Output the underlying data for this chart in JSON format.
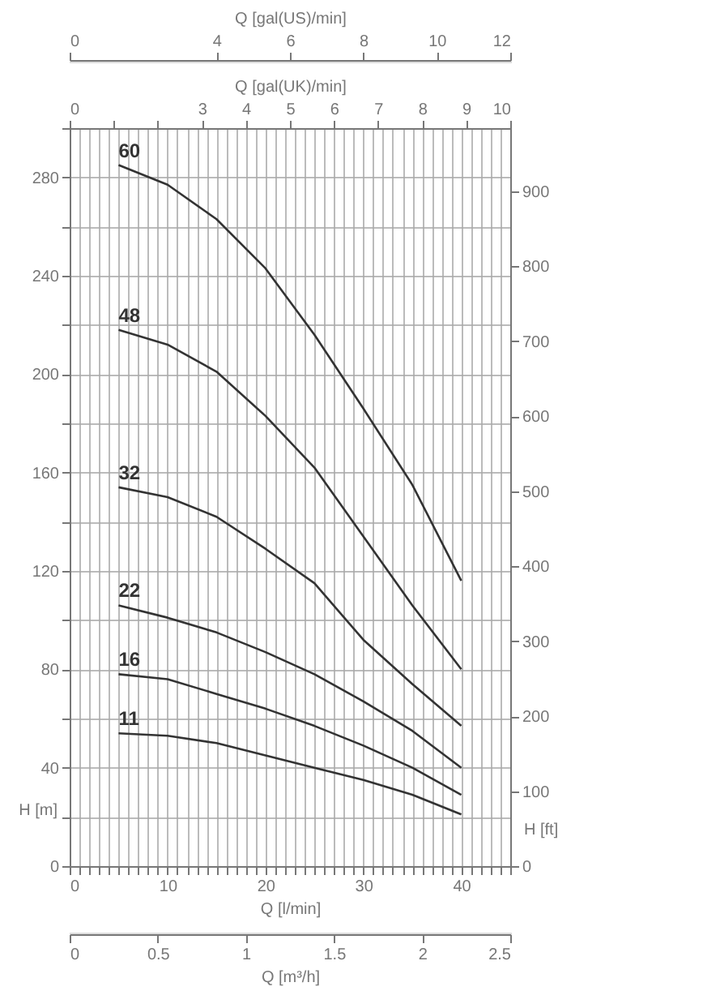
{
  "chart_data": [
    {
      "type": "other",
      "xlabel": "Q [gal(US)/min]",
      "annotations": [
        "0",
        "4",
        "6",
        "8",
        "10",
        "12"
      ]
    },
    {
      "type": "line",
      "xlabel": "Q [l/min]",
      "ylabel": "H [m]",
      "x2label": "Q [gal(UK)/min]",
      "y2label": "H [ft]",
      "x": [
        5,
        10,
        15,
        20,
        25,
        30,
        35,
        40
      ],
      "series": [
        {
          "name": "60",
          "color": "#333333",
          "values": [
            285,
            277,
            263,
            243,
            216,
            186,
            155,
            116
          ]
        },
        {
          "name": "48",
          "color": "#333333",
          "values": [
            218,
            212,
            201,
            183,
            162,
            134,
            106,
            80
          ]
        },
        {
          "name": "32",
          "color": "#333333",
          "values": [
            154,
            150,
            142,
            129,
            115,
            92,
            74,
            57
          ]
        },
        {
          "name": "22",
          "color": "#333333",
          "values": [
            106,
            101,
            95,
            87,
            78,
            67,
            55,
            40
          ]
        },
        {
          "name": "16",
          "color": "#333333",
          "values": [
            78,
            76,
            70,
            64,
            57,
            49,
            40,
            29
          ]
        },
        {
          "name": "11",
          "color": "#333333",
          "values": [
            54,
            53,
            50,
            45,
            40,
            35,
            29,
            21
          ]
        }
      ],
      "xlim": [
        0,
        45
      ],
      "xticks": [
        0,
        {
          "value": 1,
          "label": null
        },
        {
          "value": 2,
          "label": null
        },
        {
          "value": 3,
          "label": null
        },
        {
          "value": 4,
          "label": null
        },
        {
          "value": 5,
          "label": null
        },
        {
          "value": 6,
          "label": null
        },
        {
          "value": 7,
          "label": null
        },
        {
          "value": 8,
          "label": null
        },
        {
          "value": 9,
          "label": null
        },
        10,
        {
          "value": 11,
          "label": null
        },
        {
          "value": 12,
          "label": null
        },
        {
          "value": 13,
          "label": null
        },
        {
          "value": 14,
          "label": null
        },
        {
          "value": 15,
          "label": null
        },
        {
          "value": 16,
          "label": null
        },
        {
          "value": 17,
          "label": null
        },
        {
          "value": 18,
          "label": null
        },
        {
          "value": 19,
          "label": null
        },
        20,
        {
          "value": 21,
          "label": null
        },
        {
          "value": 22,
          "label": null
        },
        {
          "value": 23,
          "label": null
        },
        {
          "value": 24,
          "label": null
        },
        {
          "value": 25,
          "label": null
        },
        {
          "value": 26,
          "label": null
        },
        {
          "value": 27,
          "label": null
        },
        {
          "value": 28,
          "label": null
        },
        {
          "value": 29,
          "label": null
        },
        30,
        {
          "value": 31,
          "label": null
        },
        {
          "value": 32,
          "label": null
        },
        {
          "value": 33,
          "label": null
        },
        {
          "value": 34,
          "label": null
        },
        {
          "value": 35,
          "label": null
        },
        {
          "value": 36,
          "label": null
        },
        {
          "value": 37,
          "label": null
        },
        {
          "value": 38,
          "label": null
        },
        {
          "value": 39,
          "label": null
        },
        40,
        {
          "value": 41,
          "label": null
        },
        {
          "value": 42,
          "label": null
        },
        {
          "value": 43,
          "label": null
        },
        {
          "value": 44,
          "label": null
        },
        {
          "value": 45,
          "label": null
        }
      ],
      "ylim": [
        0,
        300
      ],
      "yticks": [
        0,
        {
          "value": 20,
          "label": null
        },
        40,
        {
          "value": 60,
          "label": null
        },
        80,
        {
          "value": 100,
          "label": null
        },
        120,
        {
          "value": 140,
          "label": null
        },
        160,
        {
          "value": 180,
          "label": null
        },
        200,
        {
          "value": 220,
          "label": null
        },
        240,
        {
          "value": 260,
          "label": null
        },
        280,
        {
          "value": 300,
          "label": null
        }
      ],
      "x2lim": [
        0,
        10
      ],
      "x2ticks": [
        0,
        {
          "value": 1,
          "label": null
        },
        {
          "value": 2,
          "label": null
        },
        3,
        4,
        5,
        6,
        7,
        8,
        9,
        10
      ],
      "y2lim": [
        0,
        984
      ],
      "y2ticks": [
        0,
        100,
        200,
        300,
        400,
        500,
        600,
        700,
        800,
        900
      ],
      "grid": true
    },
    {
      "type": "other",
      "xlabel": "Q [m³/h]",
      "annotations": [
        "0",
        "0.5",
        "1",
        "1.5",
        "2",
        "2.5"
      ]
    }
  ]
}
